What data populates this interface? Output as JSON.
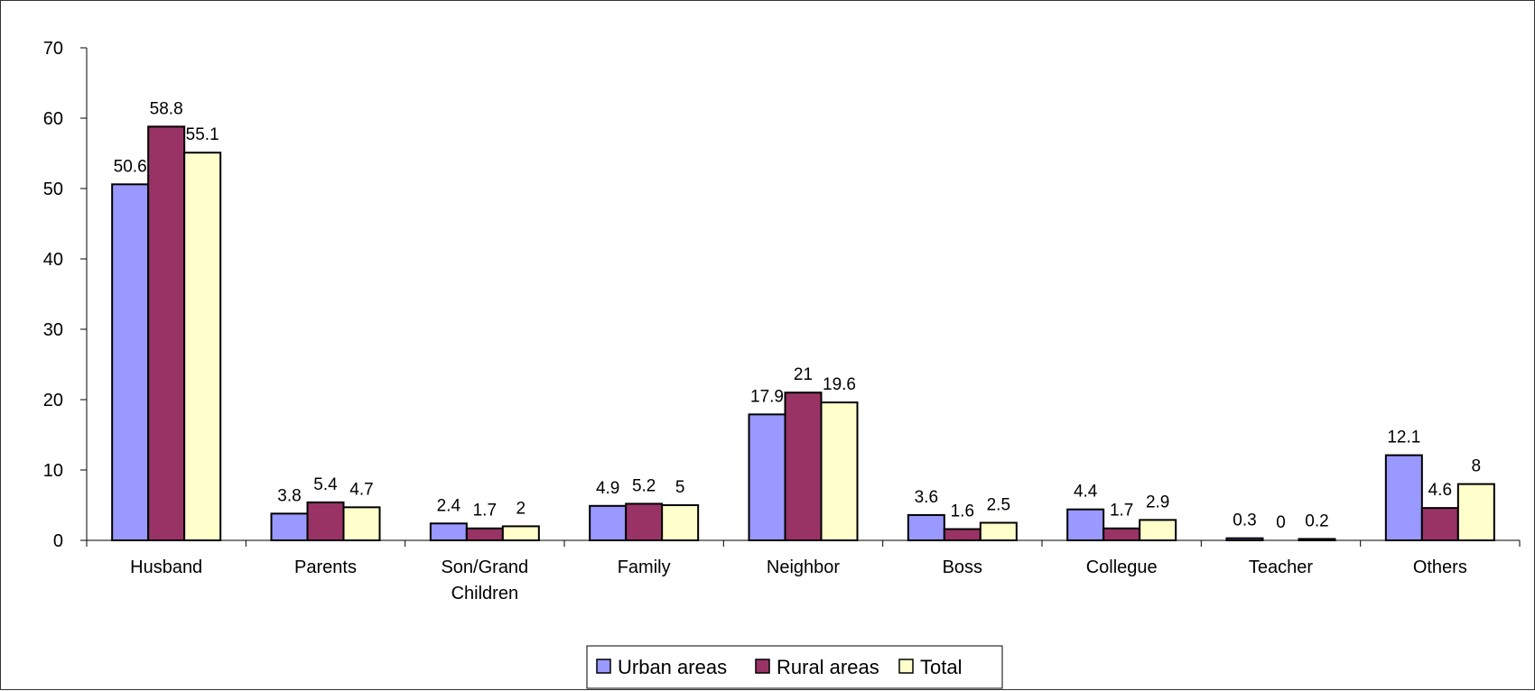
{
  "chart_data": {
    "type": "bar",
    "title": "",
    "xlabel": "",
    "ylabel": "",
    "ylim": [
      0,
      70
    ],
    "yticks": [
      0,
      10,
      20,
      30,
      40,
      50,
      60,
      70
    ],
    "grid": false,
    "legend_position": "bottom",
    "categories": [
      [
        "Husband"
      ],
      [
        "Parents"
      ],
      [
        "Son/Grand",
        "Children"
      ],
      [
        "Family"
      ],
      [
        "Neighbor"
      ],
      [
        "Boss"
      ],
      [
        "Collegue"
      ],
      [
        "Teacher"
      ],
      [
        "Others"
      ]
    ],
    "series": [
      {
        "name": "Urban areas",
        "color": "#9999ff",
        "values": [
          50.6,
          3.8,
          2.4,
          4.9,
          17.9,
          3.6,
          4.4,
          0.3,
          12.1
        ]
      },
      {
        "name": "Rural areas",
        "color": "#993366",
        "values": [
          58.8,
          5.4,
          1.7,
          5.2,
          21,
          1.6,
          1.7,
          0,
          4.6
        ]
      },
      {
        "name": "Total",
        "color": "#ffffcc",
        "values": [
          55.1,
          4.7,
          2,
          5,
          19.6,
          2.5,
          2.9,
          0.2,
          8
        ]
      }
    ]
  }
}
